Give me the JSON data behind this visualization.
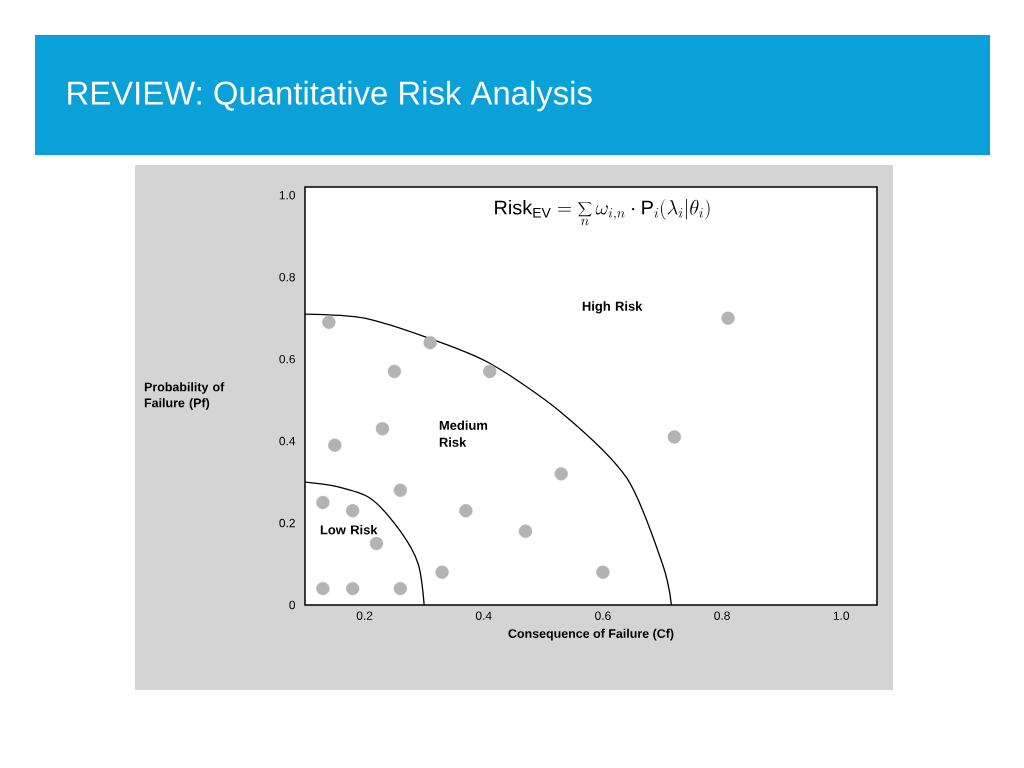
{
  "chart_data": {
    "type": "scatter",
    "title": "REVIEW: Quantitative Risk Analysis",
    "xlabel": "Consequence of Failure (Cf)",
    "ylabel": "Probability of Failure (Pf)",
    "xlim": [
      0.1,
      1.06
    ],
    "ylim": [
      0,
      1.02
    ],
    "xticks": [
      0.2,
      0.4,
      0.6,
      0.8,
      {
        "value": 1.0,
        "label": "1.0"
      }
    ],
    "yticks": [
      0,
      0.2,
      0.4,
      0.6,
      0.8,
      {
        "value": 1.0,
        "label": "1.0"
      }
    ],
    "series": [
      {
        "marker": "circle",
        "color": "#b3b3b3",
        "x": [
          0.14,
          0.31,
          0.25,
          0.41,
          0.15,
          0.23,
          0.26,
          0.13,
          0.18,
          0.37,
          0.22,
          0.47,
          0.53,
          0.13,
          0.18,
          0.26,
          0.33,
          0.6,
          0.72,
          0.81
        ],
        "values": [
          0.69,
          0.64,
          0.57,
          0.57,
          0.39,
          0.43,
          0.28,
          0.25,
          0.23,
          0.23,
          0.15,
          0.18,
          0.32,
          0.04,
          0.04,
          0.04,
          0.08,
          0.08,
          0.41,
          0.7
        ]
      },
      {
        "type": "line",
        "marker": "none",
        "color": "#000000",
        "x": [
          0.1,
          0.2,
          0.31,
          0.41,
          0.53,
          0.64,
          0.7,
          0.715
        ],
        "values": [
          0.71,
          0.7,
          0.65,
          0.59,
          0.47,
          0.31,
          0.1,
          0
        ]
      },
      {
        "type": "line",
        "marker": "none",
        "color": "#000000",
        "x": [
          0.1,
          0.15,
          0.21,
          0.26,
          0.29,
          0.3
        ],
        "values": [
          0.3,
          0.29,
          0.26,
          0.18,
          0.1,
          0
        ]
      }
    ],
    "annotations": [
      "\\mathrm{Risk}_{\\mathrm{EV}} = \\sum_{n} \\omega_{i,n} \\cdot \\mathrm{P}_{i}(\\lambda_{i}|\\theta_{i})",
      "High Risk",
      "Medium Risk",
      "Low Risk"
    ]
  }
}
